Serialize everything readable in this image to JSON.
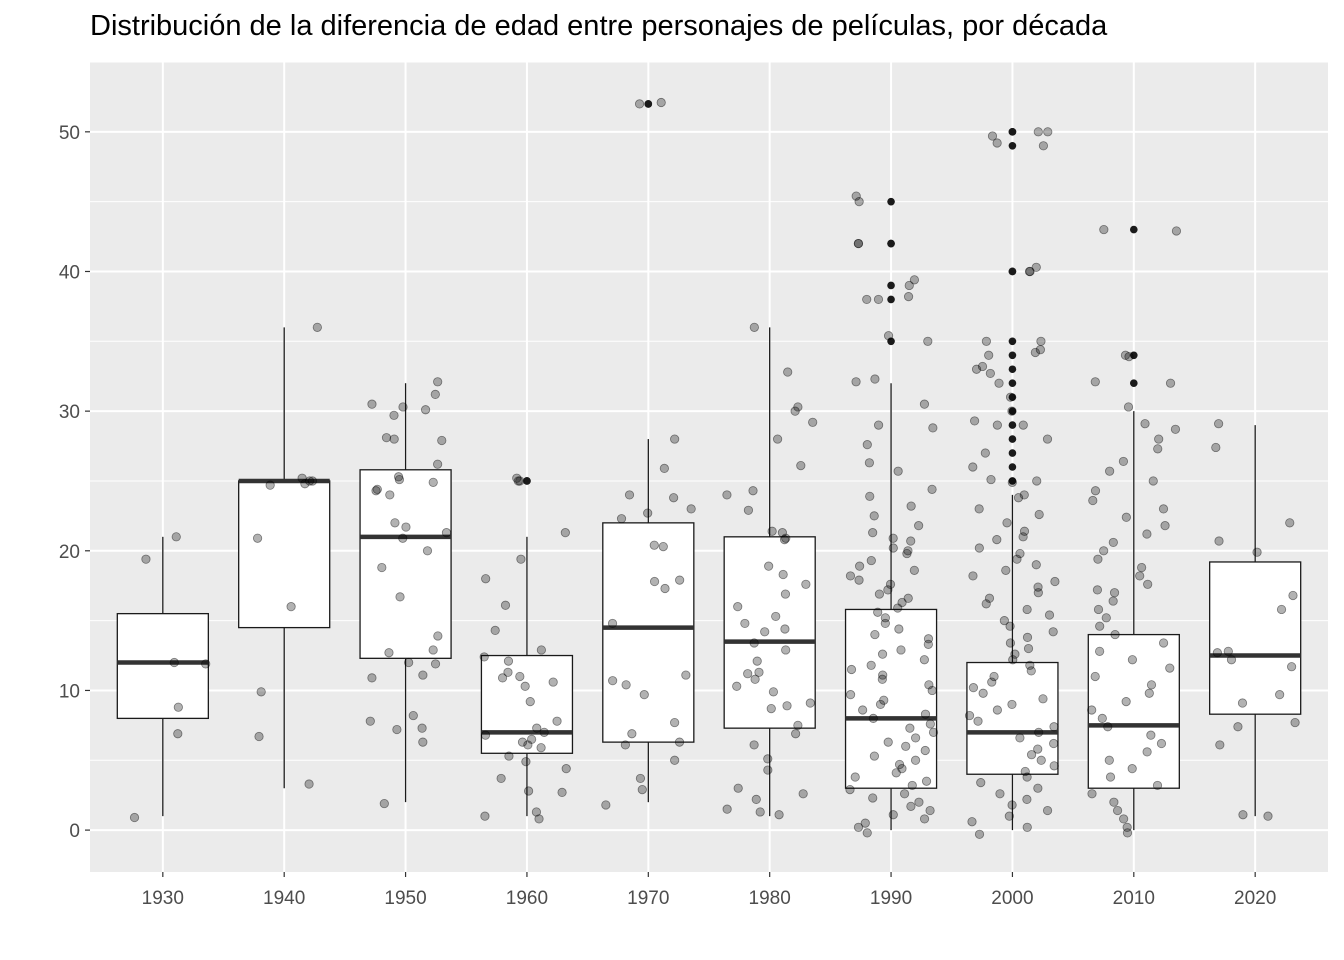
{
  "chart_data": {
    "type": "boxplot",
    "title": "Distribución de la diferencia de edad entre personajes de películas, por década",
    "xlabel": "",
    "ylabel": "",
    "categories": [
      "1930",
      "1940",
      "1950",
      "1960",
      "1970",
      "1980",
      "1990",
      "2000",
      "2010",
      "2020"
    ],
    "ylim": [
      -3,
      55
    ],
    "y_ticks": [
      "0",
      "10",
      "20",
      "30",
      "40",
      "50"
    ],
    "grid": true,
    "background": "#ebebeb",
    "boxes": [
      {
        "category": "1930",
        "min": 1,
        "q1": 8,
        "median": 12,
        "q3": 15.5,
        "max": 21,
        "outliers": []
      },
      {
        "category": "1940",
        "min": 3,
        "q1": 14.5,
        "median": 25,
        "q3": 25,
        "max": 36,
        "outliers": []
      },
      {
        "category": "1950",
        "min": 2,
        "q1": 12.3,
        "median": 21,
        "q3": 25.8,
        "max": 32,
        "outliers": []
      },
      {
        "category": "1960",
        "min": 1,
        "q1": 5.5,
        "median": 7,
        "q3": 12.5,
        "max": 21,
        "outliers": [
          25,
          25
        ]
      },
      {
        "category": "1970",
        "min": 2,
        "q1": 6.3,
        "median": 14.5,
        "q3": 22,
        "max": 28,
        "outliers": [
          52,
          52
        ]
      },
      {
        "category": "1980",
        "min": 1,
        "q1": 7.3,
        "median": 13.5,
        "q3": 21,
        "max": 36,
        "outliers": []
      },
      {
        "category": "1990",
        "min": 0,
        "q1": 3,
        "median": 8,
        "q3": 15.8,
        "max": 32,
        "outliers": [
          35,
          38,
          39,
          42,
          42,
          45
        ]
      },
      {
        "category": "2000",
        "min": 0,
        "q1": 4,
        "median": 7,
        "q3": 12,
        "max": 24,
        "outliers": [
          25,
          26,
          27,
          28,
          29,
          30,
          31,
          32,
          33,
          34,
          35,
          40,
          40,
          49,
          50,
          50
        ]
      },
      {
        "category": "2010",
        "min": 0,
        "q1": 3,
        "median": 7.5,
        "q3": 14,
        "max": 30,
        "outliers": [
          32,
          34,
          43
        ]
      },
      {
        "category": "2020",
        "min": 1,
        "q1": 8.3,
        "median": 12.5,
        "q3": 19.2,
        "max": 29,
        "outliers": []
      }
    ],
    "jitter_points": {
      "1930": [
        21,
        19.4,
        12,
        11.9,
        8.8,
        6.9,
        0.9
      ],
      "1940": [
        36,
        25.2,
        25,
        24.8,
        24.7,
        25,
        20.9,
        16,
        9.9,
        6.7,
        3.3
      ],
      "1950": [
        32.1,
        31.2,
        30.5,
        30.3,
        30.1,
        29.7,
        28.1,
        28,
        27.9,
        26.2,
        25.3,
        25.1,
        24.9,
        24.4,
        24.3,
        24,
        22,
        21.7,
        21.3,
        20.9,
        20,
        18.8,
        16.7,
        13.9,
        12.9,
        12.7,
        12,
        11.9,
        11.1,
        10.9,
        8.2,
        7.8,
        7.3,
        7.2,
        6.3,
        1.9
      ],
      "1960": [
        25.2,
        25,
        25,
        21.3,
        19.4,
        18,
        16.1,
        14.3,
        12.9,
        12.4,
        12.1,
        11.3,
        11,
        10.9,
        10.6,
        10.3,
        9.2,
        7.8,
        7.3,
        7,
        6.8,
        6.5,
        6.3,
        6.1,
        5.9,
        5.3,
        4.9,
        4.4,
        3.7,
        2.8,
        2.7,
        1.3,
        1,
        0.8
      ],
      "1970": [
        52.1,
        52,
        28,
        25.9,
        24,
        23.8,
        23,
        22.7,
        22.3,
        20.4,
        20.3,
        17.9,
        17.8,
        17.3,
        14.8,
        11.1,
        10.7,
        10.4,
        9.7,
        7.7,
        6.9,
        6.3,
        6.1,
        5,
        3.7,
        2.9,
        1.8
      ],
      "1980": [
        36,
        32.8,
        30.3,
        30,
        29.2,
        28,
        26.1,
        24.3,
        24,
        22.9,
        21.4,
        21.3,
        20.9,
        20.8,
        18.9,
        18.3,
        17.6,
        16.9,
        16,
        15.3,
        14.8,
        14.4,
        14.2,
        13.4,
        12.9,
        12.1,
        11.3,
        11.2,
        10.8,
        10.3,
        9.9,
        9.1,
        8.9,
        8.7,
        7.5,
        6.9,
        6.1,
        5.1,
        4.3,
        3,
        2.6,
        2.2,
        1.5,
        1.1,
        1.3
      ],
      "1990": [
        45.4,
        45,
        42,
        42,
        39.4,
        39,
        38.2,
        38,
        38,
        35.4,
        35,
        32.3,
        32.1,
        30.5,
        29,
        28.8,
        27.6,
        26.3,
        25.7,
        24.4,
        23.9,
        23.2,
        22.5,
        21.8,
        21.3,
        20.9,
        20.7,
        20.2,
        20,
        19.8,
        19.3,
        18.9,
        18.6,
        18.2,
        17.9,
        17.6,
        17.2,
        16.9,
        16.6,
        16.3,
        15.9,
        15.6,
        15.2,
        14.8,
        14.4,
        14,
        13.7,
        13.3,
        12.9,
        12.6,
        12.2,
        11.8,
        11.5,
        11.1,
        10.8,
        10.4,
        10,
        9.7,
        9.3,
        9,
        8.6,
        8.3,
        8,
        7.6,
        7.3,
        7,
        6.6,
        6.3,
        6,
        5.7,
        5.3,
        5,
        4.7,
        4.4,
        4.1,
        3.8,
        3.5,
        3.2,
        2.9,
        2.6,
        2.3,
        2,
        1.7,
        1.4,
        1.1,
        0.8,
        0.5,
        0.2,
        -0.2
      ],
      "2000": [
        50,
        50,
        49.7,
        49.2,
        49,
        40.3,
        40,
        40,
        35,
        35,
        34.4,
        34.2,
        34,
        33.2,
        33,
        32.7,
        32,
        31,
        30,
        29.3,
        29,
        29,
        28,
        27,
        26,
        25.1,
        25,
        24.9,
        24,
        23.8,
        23,
        22.6,
        22,
        21.4,
        21,
        20.8,
        20.2,
        19.8,
        19.4,
        19,
        18.6,
        18.2,
        17.8,
        17.4,
        17,
        16.6,
        16.2,
        15.8,
        15.4,
        15,
        14.6,
        14.2,
        13.8,
        13.4,
        13,
        12.6,
        12.2,
        11.8,
        11.4,
        11,
        10.6,
        10.2,
        9.8,
        9.4,
        9,
        8.6,
        8.2,
        7.8,
        7.4,
        7,
        6.6,
        6.2,
        5.8,
        5.4,
        5,
        4.6,
        4.2,
        3.8,
        3.4,
        3,
        2.6,
        2.2,
        1.8,
        1.4,
        1,
        0.6,
        0.2,
        -0.3
      ],
      "2010": [
        43,
        42.9,
        34,
        33.9,
        32.1,
        32,
        30.3,
        29.1,
        28.7,
        28,
        27.3,
        26.4,
        25.7,
        25,
        24.3,
        23.6,
        23,
        22.4,
        21.8,
        21.2,
        20.6,
        20,
        19.4,
        18.8,
        18.2,
        17.6,
        17.2,
        17,
        16.4,
        15.8,
        15.2,
        14.6,
        14,
        13.4,
        12.8,
        12.2,
        11.6,
        11,
        10.4,
        9.8,
        9.2,
        8.6,
        8,
        7.4,
        6.8,
        6.2,
        5.6,
        5,
        4.4,
        3.8,
        3.2,
        2.6,
        2,
        1.4,
        0.8,
        0.2,
        -0.2
      ],
      "2020": [
        29.1,
        27.4,
        22,
        20.7,
        19.9,
        16.8,
        15.8,
        12.8,
        12.7,
        12.2,
        11.7,
        9.7,
        9.1,
        7.7,
        7.4,
        6.1,
        1.1,
        1
      ]
    }
  }
}
